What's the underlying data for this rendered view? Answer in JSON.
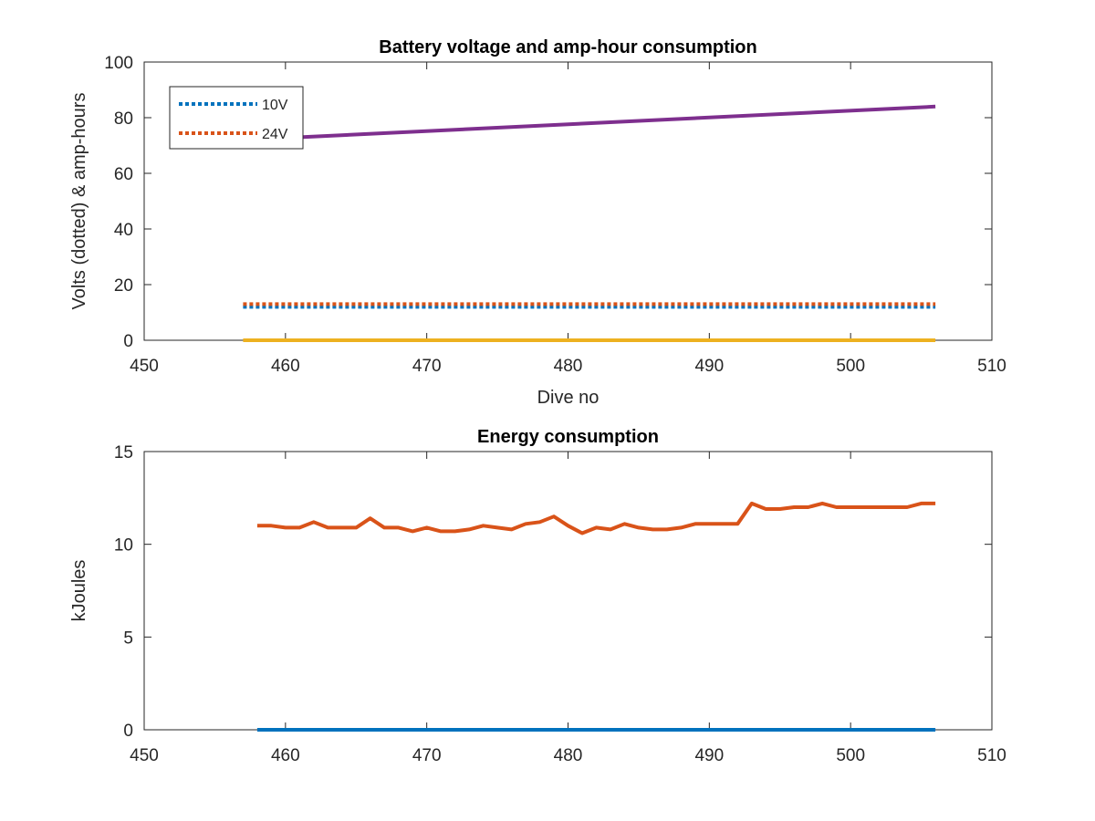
{
  "chart_data": [
    {
      "type": "line",
      "title": "Battery voltage and amp-hour consumption",
      "xlabel": "Dive no",
      "ylabel": "Volts (dotted) & amp-hours",
      "xlim": [
        450,
        510
      ],
      "ylim": [
        0,
        100
      ],
      "xticks": [
        "450",
        "460",
        "470",
        "480",
        "490",
        "500",
        "510"
      ],
      "yticks": [
        "0",
        "20",
        "40",
        "60",
        "80",
        "100"
      ],
      "grid": false,
      "legend": "top-left",
      "series": [
        {
          "name": "10V",
          "style": "dotted",
          "color": "#0072BD",
          "x": [
            457,
            506
          ],
          "y": [
            12,
            12
          ]
        },
        {
          "name": "24V",
          "style": "dotted",
          "color": "#D95319",
          "x": [
            457,
            506
          ],
          "y": [
            13,
            13
          ]
        },
        {
          "style": "solid",
          "color": "#EDB120",
          "x": [
            457,
            506
          ],
          "y": [
            0,
            0
          ]
        },
        {
          "style": "solid",
          "color": "#7E2F8E",
          "x": [
            457,
            506
          ],
          "y": [
            72,
            84
          ]
        }
      ]
    },
    {
      "type": "line",
      "title": "Energy consumption",
      "xlabel": "",
      "ylabel": "kJoules",
      "xlim": [
        450,
        510
      ],
      "ylim": [
        0,
        15
      ],
      "xticks": [
        "450",
        "460",
        "470",
        "480",
        "490",
        "500",
        "510"
      ],
      "yticks": [
        "0",
        "5",
        "10",
        "15"
      ],
      "grid": false,
      "series": [
        {
          "style": "solid",
          "color": "#0072BD",
          "x": [
            458,
            506
          ],
          "y": [
            0,
            0
          ]
        },
        {
          "style": "solid",
          "color": "#D95319",
          "x": [
            458,
            459,
            460,
            461,
            462,
            463,
            464,
            465,
            466,
            467,
            468,
            469,
            470,
            471,
            472,
            473,
            474,
            475,
            476,
            477,
            478,
            479,
            480,
            481,
            482,
            483,
            484,
            485,
            486,
            487,
            488,
            489,
            490,
            491,
            492,
            493,
            494,
            495,
            496,
            497,
            498,
            499,
            500,
            501,
            502,
            503,
            504,
            505,
            506
          ],
          "y": [
            11.0,
            11.0,
            10.9,
            10.9,
            11.2,
            10.9,
            10.9,
            10.9,
            11.4,
            10.9,
            10.9,
            10.7,
            10.9,
            10.7,
            10.7,
            10.8,
            11.0,
            10.9,
            10.8,
            11.1,
            11.2,
            11.5,
            11.0,
            10.6,
            10.9,
            10.8,
            11.1,
            10.9,
            10.8,
            10.8,
            10.9,
            11.1,
            11.1,
            11.1,
            11.1,
            12.2,
            11.9,
            11.9,
            12.0,
            12.0,
            12.2,
            12.0,
            12.0,
            12.0,
            12.0,
            12.0,
            12.0,
            12.2,
            12.2
          ]
        }
      ]
    }
  ]
}
